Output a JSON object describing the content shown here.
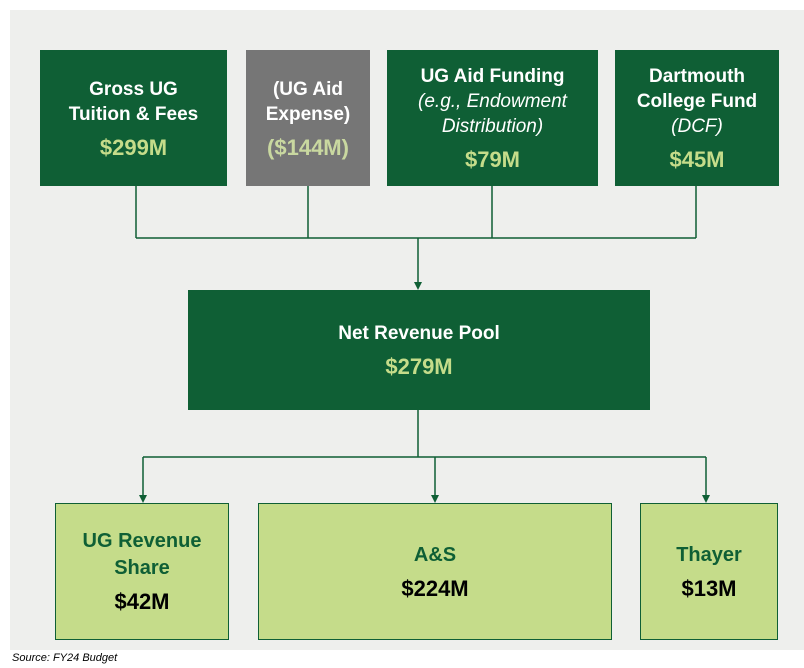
{
  "top_nodes": [
    {
      "label_lines": [
        "Gross UG",
        "Tuition & Fees"
      ],
      "note_lines": [],
      "amount": "$299M"
    },
    {
      "label_lines": [
        "(UG Aid",
        "Expense)"
      ],
      "note_lines": [],
      "amount": "($144M)"
    },
    {
      "label_lines": [
        "UG Aid Funding"
      ],
      "note_lines": [
        "(e.g., Endowment",
        "Distribution)"
      ],
      "amount": "$79M"
    },
    {
      "label_lines": [
        "Dartmouth",
        "College Fund"
      ],
      "note_lines": [
        "(DCF)"
      ],
      "amount": "$45M"
    }
  ],
  "pool": {
    "label_lines": [
      "Net Revenue Pool"
    ],
    "amount": "$279M"
  },
  "bottom_nodes": [
    {
      "label_lines": [
        "UG Revenue",
        "Share"
      ],
      "amount": "$42M"
    },
    {
      "label_lines": [
        "A&S"
      ],
      "amount": "$224M"
    },
    {
      "label_lines": [
        "Thayer"
      ],
      "amount": "$13M"
    }
  ],
  "source": "Source: FY24 Budget"
}
